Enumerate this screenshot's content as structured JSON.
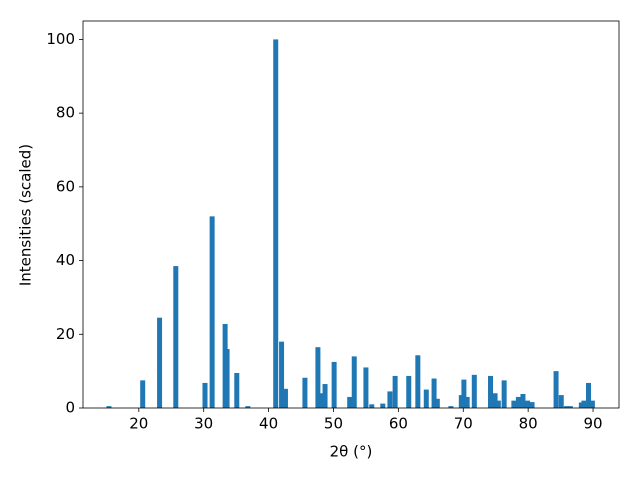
{
  "chart_data": {
    "type": "bar",
    "x_label": "2θ (°)",
    "y_label": "Intensities (scaled)",
    "x": [
      15.4,
      20.6,
      23.2,
      25.7,
      30.2,
      31.3,
      33.3,
      33.6,
      35.1,
      36.8,
      41.1,
      42.0,
      42.6,
      45.6,
      47.6,
      48.2,
      48.7,
      50.1,
      52.5,
      53.2,
      55.0,
      55.9,
      57.6,
      58.7,
      59.5,
      61.6,
      63.0,
      64.3,
      65.5,
      66.0,
      68.1,
      69.7,
      70.1,
      70.6,
      71.7,
      74.2,
      74.9,
      75.4,
      76.3,
      77.8,
      78.5,
      79.2,
      79.9,
      80.6,
      84.3,
      85.1,
      85.9,
      86.5,
      88.2,
      88.6,
      89.3,
      89.9
    ],
    "values": [
      0.5,
      7.5,
      24.5,
      38.5,
      6.8,
      52,
      22.8,
      16,
      9.5,
      0.5,
      100,
      18,
      5.2,
      8.2,
      16.5,
      4,
      6.5,
      12.5,
      3,
      14,
      11,
      1,
      1.2,
      4.5,
      8.7,
      8.7,
      14.3,
      5,
      8,
      2.5,
      0.5,
      3.5,
      7.7,
      3,
      9,
      8.7,
      4,
      2,
      7.5,
      2,
      3,
      3.8,
      2,
      1.6,
      10,
      3.5,
      0.5,
      0.5,
      1.5,
      2,
      6.8,
      2
    ],
    "color": "#1f77b4",
    "xlim": [
      11.4,
      94.0
    ],
    "xticks": [
      20,
      30,
      40,
      50,
      60,
      70,
      80,
      90
    ],
    "ylim": [
      0,
      105
    ],
    "yticks": [
      0,
      20,
      40,
      60,
      80,
      100
    ],
    "grid": false
  }
}
